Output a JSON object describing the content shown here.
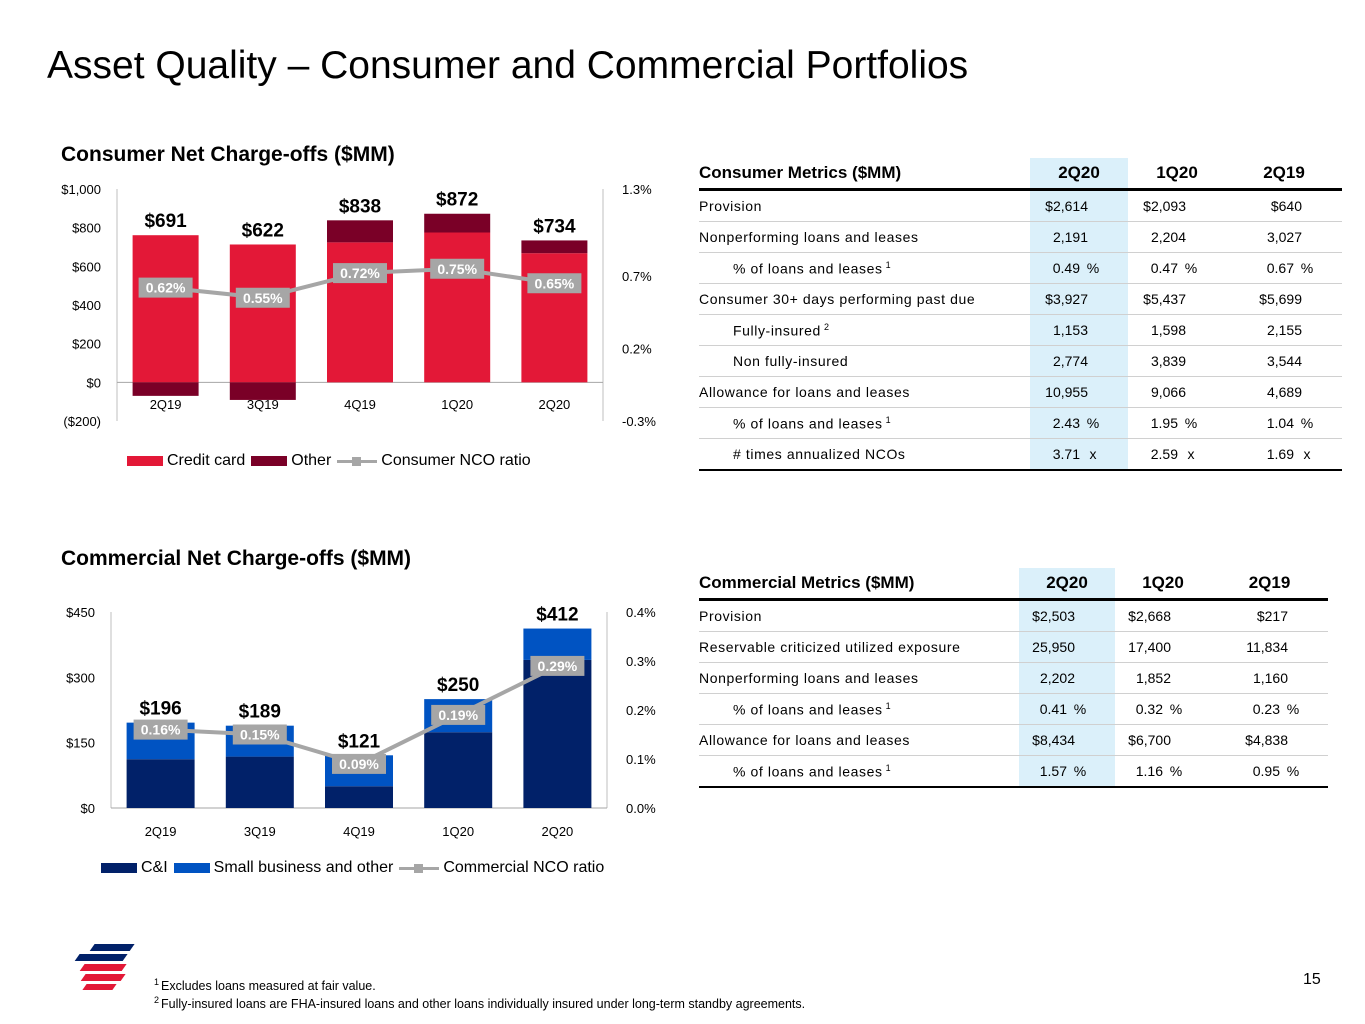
{
  "title": "Asset Quality – Consumer and Commercial Portfolios",
  "consumer_chart_title": "Consumer Net Charge-offs ($MM)",
  "commercial_chart_title": "Commercial Net Charge-offs ($MM)",
  "chart_data": [
    {
      "type": "bar",
      "stacked": true,
      "title": "Consumer Net Charge-offs ($MM)",
      "categories": [
        "2Q19",
        "3Q19",
        "4Q19",
        "1Q20",
        "2Q20"
      ],
      "series": [
        {
          "name": "Credit card",
          "values": [
            761,
            713,
            724,
            775,
            668
          ],
          "color": "#e31837"
        },
        {
          "name": "Other",
          "values": [
            -70,
            -91,
            114,
            97,
            66
          ],
          "color": "#7a0027"
        }
      ],
      "totals": [
        "$691",
        "$622",
        "$838",
        "$872",
        "$734"
      ],
      "line": {
        "name": "Consumer NCO ratio",
        "values": [
          0.62,
          0.55,
          0.72,
          0.75,
          0.65
        ],
        "labels": [
          "0.62%",
          "0.55%",
          "0.72%",
          "0.75%",
          "0.65%"
        ],
        "color": "#a6a6a6"
      },
      "y_left": {
        "min": -200,
        "max": 1000,
        "ticks": [
          1000,
          800,
          600,
          400,
          200,
          0,
          -200
        ],
        "tick_labels": [
          "$1,000",
          "$800",
          "$600",
          "$400",
          "$200",
          "$0",
          "($200)"
        ]
      },
      "y_right": {
        "min": -0.3,
        "max": 1.3,
        "ticks": [
          1.3,
          0.7,
          0.2,
          -0.3
        ],
        "tick_labels": [
          "1.3%",
          "0.7%",
          "0.2%",
          "-0.3%"
        ]
      },
      "legend": [
        "Credit card",
        "Other",
        "Consumer NCO ratio"
      ],
      "legend_position": "bottom",
      "grid": false
    },
    {
      "type": "bar",
      "stacked": true,
      "title": "Commercial Net Charge-offs ($MM)",
      "categories": [
        "2Q19",
        "3Q19",
        "4Q19",
        "1Q20",
        "2Q20"
      ],
      "series": [
        {
          "name": "C&I",
          "values": [
            112,
            118,
            50,
            174,
            340
          ],
          "color": "#012169"
        },
        {
          "name": "Small business and other",
          "values": [
            84,
            71,
            71,
            76,
            72
          ],
          "color": "#0053c2"
        }
      ],
      "totals": [
        "$196",
        "$189",
        "$121",
        "$250",
        "$412"
      ],
      "line": {
        "name": "Commercial NCO ratio",
        "values": [
          0.16,
          0.15,
          0.09,
          0.19,
          0.29
        ],
        "labels": [
          "0.16%",
          "0.15%",
          "0.09%",
          "0.19%",
          "0.29%"
        ],
        "color": "#a6a6a6"
      },
      "y_left": {
        "min": 0,
        "max": 450,
        "ticks": [
          450,
          300,
          150,
          0
        ],
        "tick_labels": [
          "$450",
          "$300",
          "$150",
          "$0"
        ]
      },
      "y_right": {
        "min": 0,
        "max": 0.4,
        "ticks": [
          0.4,
          0.3,
          0.2,
          0.1,
          0.0
        ],
        "tick_labels": [
          "0.4%",
          "0.3%",
          "0.2%",
          "0.1%",
          "0.0%"
        ]
      },
      "legend": [
        "C&I",
        "Small business and other",
        "Commercial NCO ratio"
      ],
      "legend_position": "bottom",
      "grid": false
    }
  ],
  "consumer_table": {
    "header": [
      "Consumer Metrics ($MM)",
      "2Q20",
      "1Q20",
      "2Q19"
    ],
    "rows": [
      {
        "label": "Provision",
        "indent": false,
        "sup": "",
        "values": [
          "$2,614",
          "$2,093",
          "$640"
        ],
        "unit": ""
      },
      {
        "label": "Nonperforming loans and leases",
        "indent": false,
        "sup": "",
        "values": [
          "2,191",
          "2,204",
          "3,027"
        ],
        "unit": ""
      },
      {
        "label": "% of loans and leases",
        "indent": true,
        "sup": "1",
        "values": [
          "0.49",
          "0.47",
          "0.67"
        ],
        "unit": "%"
      },
      {
        "label": "Consumer 30+ days performing past due",
        "indent": false,
        "sup": "",
        "values": [
          "$3,927",
          "$5,437",
          "$5,699"
        ],
        "unit": ""
      },
      {
        "label": "Fully-insured",
        "indent": true,
        "sup": "2",
        "values": [
          "1,153",
          "1,598",
          "2,155"
        ],
        "unit": ""
      },
      {
        "label": "Non fully-insured",
        "indent": true,
        "sup": "",
        "values": [
          "2,774",
          "3,839",
          "3,544"
        ],
        "unit": ""
      },
      {
        "label": "Allowance for loans and leases",
        "indent": false,
        "sup": "",
        "values": [
          "10,955",
          "9,066",
          "4,689"
        ],
        "unit": ""
      },
      {
        "label": "% of loans and leases",
        "indent": true,
        "sup": "1",
        "values": [
          "2.43",
          "1.95",
          "1.04"
        ],
        "unit": "%"
      },
      {
        "label": "# times annualized NCOs",
        "indent": true,
        "sup": "",
        "values": [
          "3.71",
          "2.59",
          "1.69"
        ],
        "unit": "x"
      }
    ]
  },
  "commercial_table": {
    "header": [
      "Commercial Metrics ($MM)",
      "2Q20",
      "1Q20",
      "2Q19"
    ],
    "rows": [
      {
        "label": "Provision",
        "indent": false,
        "sup": "",
        "values": [
          "$2,503",
          "$2,668",
          "$217"
        ],
        "unit": ""
      },
      {
        "label": "Reservable criticized utilized exposure",
        "indent": false,
        "sup": "",
        "values": [
          "25,950",
          "17,400",
          "11,834"
        ],
        "unit": ""
      },
      {
        "label": "Nonperforming loans and leases",
        "indent": false,
        "sup": "",
        "values": [
          "2,202",
          "1,852",
          "1,160"
        ],
        "unit": ""
      },
      {
        "label": "% of loans and leases",
        "indent": true,
        "sup": "1",
        "values": [
          "0.41",
          "0.32",
          "0.23"
        ],
        "unit": "%"
      },
      {
        "label": "Allowance for loans and leases",
        "indent": false,
        "sup": "",
        "values": [
          "$8,434",
          "$6,700",
          "$4,838"
        ],
        "unit": ""
      },
      {
        "label": "% of loans and leases",
        "indent": true,
        "sup": "1",
        "values": [
          "1.57",
          "1.16",
          "0.95"
        ],
        "unit": "%"
      }
    ]
  },
  "footnotes": [
    {
      "num": "1",
      "text": "Excludes loans measured at fair value."
    },
    {
      "num": "2",
      "text": "Fully-insured loans are FHA-insured loans and other loans individually insured under long-term standby agreements."
    }
  ],
  "page_number": "15",
  "logo_icon": "bank-flag-logo-icon"
}
